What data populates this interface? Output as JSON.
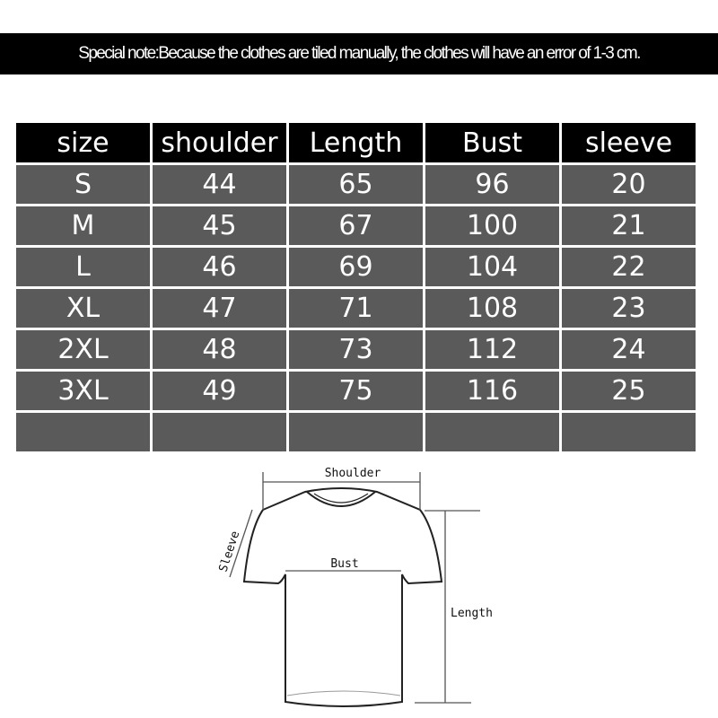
{
  "note": "Special note:Because the clothes are tiled manually, the clothes will have an error of 1-3 cm.",
  "table": {
    "headers": [
      "size",
      "shoulder",
      "Length",
      "Bust",
      "sleeve"
    ],
    "rows": [
      [
        "S",
        "44",
        "65",
        "96",
        "20"
      ],
      [
        "M",
        "45",
        "67",
        "100",
        "21"
      ],
      [
        "L",
        "46",
        "69",
        "104",
        "22"
      ],
      [
        "XL",
        "47",
        "71",
        "108",
        "23"
      ],
      [
        "2XL",
        "48",
        "73",
        "112",
        "24"
      ],
      [
        "3XL",
        "49",
        "75",
        "116",
        "25"
      ],
      [
        "",
        "",
        "",
        "",
        ""
      ]
    ]
  },
  "diagram": {
    "shoulder_label": "Shoulder",
    "sleeve_label": "Sleeve",
    "bust_label": "Bust",
    "length_label": "Length"
  },
  "colors": {
    "header_bg": "#000000",
    "cell_bg": "#5a5a5a",
    "text": "#ffffff"
  }
}
